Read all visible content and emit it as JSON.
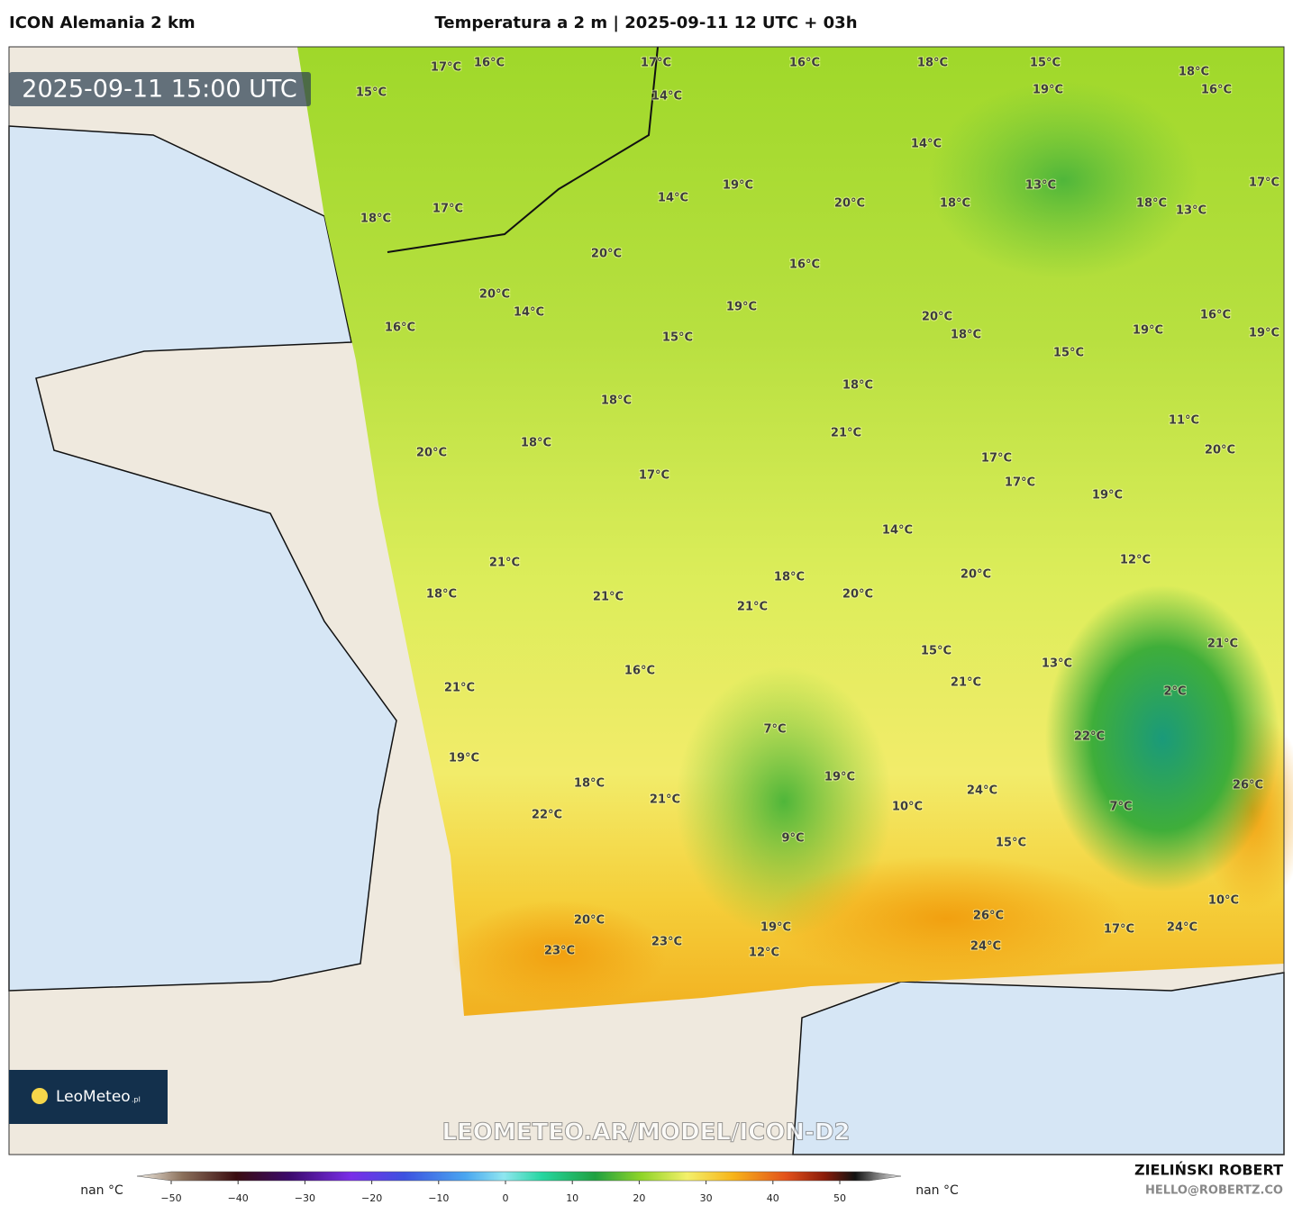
{
  "header": {
    "model": "ICON Alemania 2 km",
    "title": "Temperatura a 2 m | 2025-09-11 12 UTC + 03h"
  },
  "timestamp": "2025-09-11 15:00 UTC",
  "labels": [
    "17°C",
    "16°C",
    "15°C",
    "17°C",
    "14°C",
    "16°C",
    "18°C",
    "15°C",
    "19°C",
    "18°C",
    "16°C",
    "14°C",
    "13°C",
    "17°C",
    "18°C",
    "13°C",
    "18°C",
    "17°C",
    "14°C",
    "19°C",
    "20°C",
    "18°C",
    "20°C",
    "16°C",
    "20°C",
    "14°C",
    "19°C",
    "16°C",
    "15°C",
    "20°C",
    "18°C",
    "16°C",
    "19°C",
    "19°C",
    "15°C",
    "18°C",
    "18°C",
    "21°C",
    "11°C",
    "18°C",
    "20°C",
    "17°C",
    "17°C",
    "20°C",
    "17°C",
    "19°C",
    "14°C",
    "12°C",
    "21°C",
    "20°C",
    "18°C",
    "18°C",
    "21°C",
    "20°C",
    "21°C",
    "21°C",
    "15°C",
    "13°C",
    "16°C",
    "21°C",
    "21°C",
    "2°C",
    "7°C",
    "22°C",
    "19°C",
    "18°C",
    "19°C",
    "26°C",
    "24°C",
    "21°C",
    "10°C",
    "7°C",
    "22°C",
    "9°C",
    "15°C",
    "10°C",
    "26°C",
    "20°C",
    "19°C",
    "17°C",
    "24°C",
    "12°C",
    "23°C",
    "23°C",
    "24°C"
  ],
  "logo": {
    "name": "LeoMeteo",
    "suffix": ".pl"
  },
  "watermark": "LEOMETEO.AR/MODEL/ICON-D2",
  "colorbar": {
    "left_label": "nan °C",
    "right_label": "nan °C",
    "ticks": [
      "−50",
      "−40",
      "−30",
      "−20",
      "−10",
      "0",
      "10",
      "20",
      "30",
      "40",
      "50"
    ]
  },
  "credits": {
    "author": "ZIELIŃSKI ROBERT",
    "contact": "HELLO@ROBERTZ.CO"
  }
}
